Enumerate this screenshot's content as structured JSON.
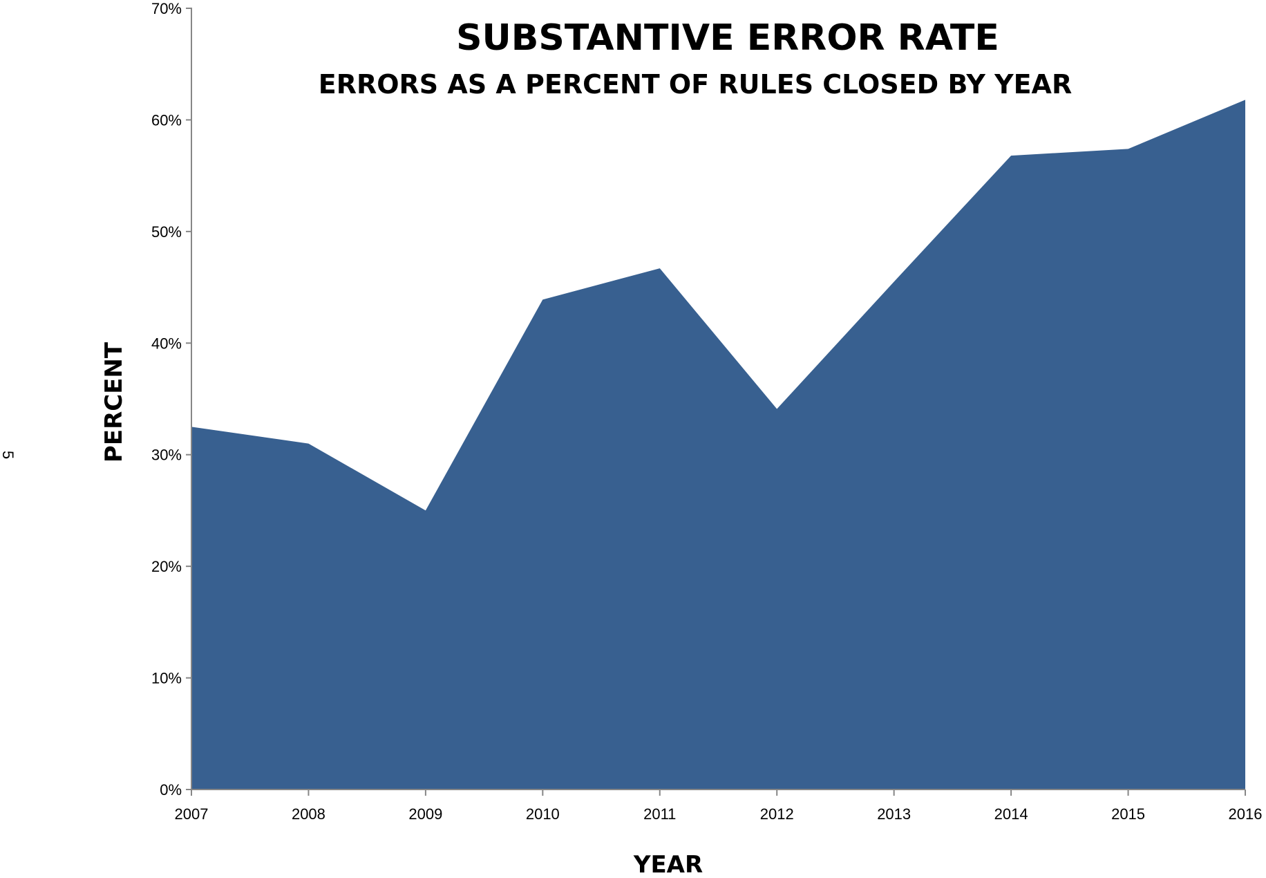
{
  "page": {
    "margin_number": "5"
  },
  "chart_data": {
    "type": "area",
    "title": "SUBSTANTIVE ERROR RATE",
    "subtitle": "ERRORS AS A PERCENT OF RULES CLOSED BY YEAR",
    "xlabel": "YEAR",
    "ylabel": "PERCENT",
    "categories": [
      "2007",
      "2008",
      "2009",
      "2010",
      "2011",
      "2012",
      "2013",
      "2014",
      "2015",
      "2016"
    ],
    "series": [
      {
        "values": [
          32.5,
          31.0,
          25.0,
          43.9,
          46.7,
          34.1,
          45.5,
          56.8,
          57.4,
          61.8
        ],
        "color": "#386090"
      }
    ],
    "ylim": [
      0,
      70
    ],
    "yticks": [
      0,
      10,
      20,
      30,
      40,
      50,
      60,
      70
    ],
    "ytick_labels": [
      "0%",
      "10%",
      "20%",
      "30%",
      "40%",
      "50%",
      "60%",
      "70%"
    ],
    "grid": false,
    "legend": "none",
    "axis_color": "#868686"
  }
}
